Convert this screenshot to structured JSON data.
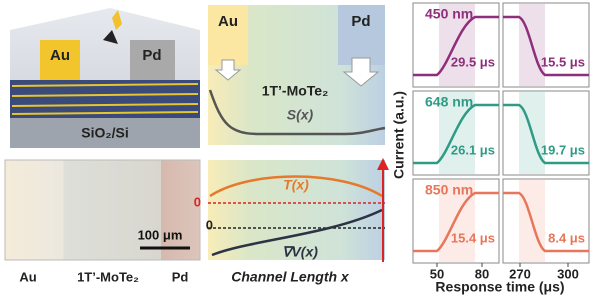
{
  "schematic": {
    "electrodes": [
      "Au",
      "Pd"
    ],
    "substrate": "SiO₂/Si"
  },
  "micrograph": {
    "scale_bar": "100 μm",
    "labels": [
      "Au",
      "1T’-MoTe₂",
      "Pd"
    ]
  },
  "band_diagram": {
    "electrodes": [
      "Au",
      "Pd"
    ],
    "material": "1T’-MoTe₂",
    "curve": "S(x)"
  },
  "profiles": {
    "curves": [
      "T(x)",
      "∇V(x)"
    ],
    "zero_labels": [
      "0",
      "0"
    ],
    "x_label": "Channel Length x"
  },
  "response": {
    "y_label": "Current (a.u.)",
    "x_label": "Response time (μs)",
    "xticks": [
      "50",
      "80",
      "270",
      "300"
    ],
    "rows": [
      {
        "wavelength": "450 nm",
        "rise": "29.5 μs",
        "fall": "15.5 μs",
        "color": "#8e2f7c"
      },
      {
        "wavelength": "648 nm",
        "rise": "26.1 μs",
        "fall": "19.7 μs",
        "color": "#2f9b86"
      },
      {
        "wavelength": "850 nm",
        "rise": "15.4 μs",
        "fall": "8.4 μs",
        "color": "#e8765a"
      }
    ]
  }
}
